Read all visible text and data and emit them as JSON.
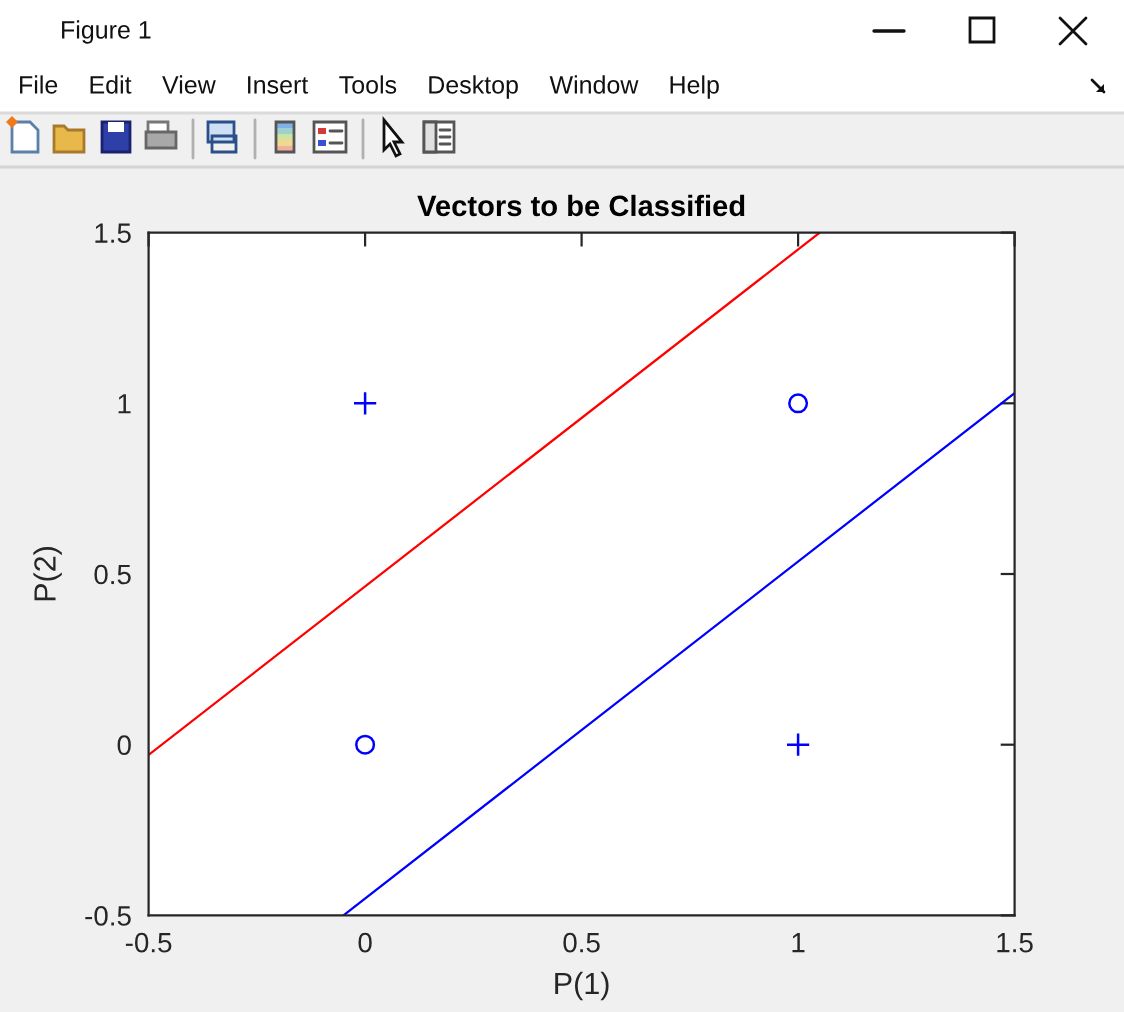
{
  "chart_data": {
    "type": "scatter",
    "title": "Vectors to be Classified",
    "xlabel": "P(1)",
    "ylabel": "P(2)",
    "xlim": [
      -0.5,
      1.5
    ],
    "ylim": [
      -0.5,
      1.5
    ],
    "xticks": [
      -0.5,
      0,
      0.5,
      1,
      1.5
    ],
    "yticks": [
      -0.5,
      0,
      0.5,
      1,
      1.5
    ],
    "series": [
      {
        "marker": "cross",
        "color": "#0000ff",
        "x": [
          0,
          1
        ],
        "values": [
          1,
          0
        ]
      },
      {
        "marker": "circle",
        "color": "#0000ff",
        "x": [
          0,
          1
        ],
        "values": [
          0,
          1
        ]
      },
      {
        "type": "line",
        "color": "#ff0000",
        "x": [
          -0.5,
          1.05
        ],
        "values": [
          -0.03,
          1.5
        ]
      },
      {
        "type": "line",
        "color": "#0000ff",
        "x": [
          -0.05,
          1.5
        ],
        "values": [
          -0.5,
          1.03
        ]
      }
    ],
    "annotations": [
      "Figure 1",
      "File",
      "Edit",
      "View",
      "Insert",
      "Tools",
      "Desktop",
      "Window",
      "Help"
    ]
  }
}
